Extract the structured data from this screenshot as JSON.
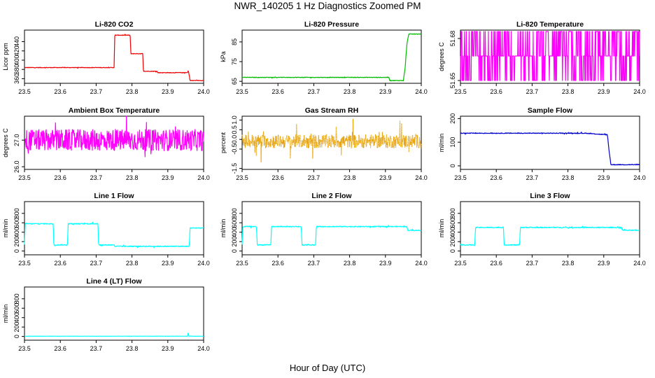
{
  "page": {
    "title": "NWR_140205  1 Hz Diagnostics Zoomed PM",
    "x_axis_title": "Hour of Day (UTC)"
  },
  "chart_data": [
    {
      "type": "line",
      "title": "Li-820 CO2",
      "ylabel": "Licor ppm",
      "xlim": [
        23.5,
        24.0
      ],
      "ylim": [
        350,
        465
      ],
      "yticks": [
        360,
        380,
        400,
        420,
        440
      ],
      "color": "#ee0000",
      "noise": 0.6,
      "series": [
        {
          "x": [
            23.5,
            23.75,
            23.752,
            23.795,
            23.797,
            23.83,
            23.832,
            23.87,
            23.872,
            23.955,
            23.957,
            23.96,
            23.962,
            24.0
          ],
          "y": [
            384,
            384,
            454,
            454,
            414,
            414,
            376,
            376,
            373,
            373,
            378,
            367,
            356,
            356
          ]
        }
      ]
    },
    {
      "type": "line",
      "title": "Li-820 Pressure",
      "ylabel": "kPa",
      "xlim": [
        23.5,
        24.0
      ],
      "ylim": [
        64,
        91
      ],
      "yticks": [
        65,
        75,
        85
      ],
      "color": "#00bb00",
      "noise": 0.15,
      "series": [
        {
          "x": [
            23.5,
            23.91,
            23.912,
            23.95,
            23.955,
            23.96,
            23.965,
            24.0
          ],
          "y": [
            67,
            67,
            65.4,
            65.4,
            72,
            84,
            89,
            89
          ]
        }
      ]
    },
    {
      "type": "line",
      "title": "Li-820 Temperature",
      "ylabel": "degrees C",
      "xlim": [
        23.5,
        24.0
      ],
      "ylim": [
        51.648,
        51.686
      ],
      "yticks": [
        51.65,
        51.68
      ],
      "color": "#ff00ff",
      "style": "toggle",
      "levels": [
        51.65,
        51.6675,
        51.685
      ],
      "series": [
        {
          "x": [
            23.5,
            24.0
          ],
          "y": [
            51.6675,
            51.6675
          ]
        }
      ]
    },
    {
      "type": "line",
      "title": "Ambient Box Temperature",
      "ylabel": "degrees C",
      "xlim": [
        23.5,
        24.0
      ],
      "ylim": [
        25.9,
        27.9
      ],
      "yticks": [
        26.0,
        27.0
      ],
      "ytick_labels": [
        "26.0",
        "27.0"
      ],
      "color": "#ff00ff",
      "noise": 0.4,
      "series": [
        {
          "x": [
            23.5,
            24.0
          ],
          "y": [
            27.0,
            27.0
          ]
        }
      ]
    },
    {
      "type": "line",
      "title": "Gas Stream RH",
      "ylabel": "percent",
      "xlim": [
        23.5,
        24.0
      ],
      "ylim": [
        -1.55,
        1.2
      ],
      "yticks": [
        -1.5,
        -0.5,
        0.0,
        0.5,
        1.0
      ],
      "ytick_labels": [
        "-1.5",
        "-0.5",
        "0.0",
        "0.5",
        "1.0"
      ],
      "color": "#e69f00",
      "noise": 0.35,
      "dotted": true,
      "series": [
        {
          "x": [
            23.5,
            24.0
          ],
          "y": [
            -0.1,
            -0.1
          ]
        }
      ]
    },
    {
      "type": "line",
      "title": "Sample Flow",
      "ylabel": "ml/min",
      "xlim": [
        23.5,
        24.0
      ],
      "ylim": [
        -15,
        210
      ],
      "yticks": [
        0,
        100,
        200
      ],
      "color": "#0000cc",
      "noise": 1.5,
      "series": [
        {
          "x": [
            23.5,
            23.85,
            23.905,
            23.91,
            23.915,
            23.92,
            24.0
          ],
          "y": [
            138,
            138,
            132,
            132,
            60,
            5,
            5
          ]
        }
      ]
    },
    {
      "type": "line",
      "title": "Line 1 Flow",
      "ylabel": "ml/min",
      "xlim": [
        23.5,
        24.0
      ],
      "ylim": [
        -80,
        1050
      ],
      "yticks": [
        0,
        200,
        400,
        600,
        800
      ],
      "color": "#00ffff",
      "noise": 10,
      "series": [
        {
          "x": [
            23.5,
            23.502,
            23.58,
            23.582,
            23.62,
            23.622,
            23.705,
            23.707,
            23.75,
            23.752,
            23.96,
            23.962,
            24.0
          ],
          "y": [
            130,
            580,
            580,
            130,
            130,
            580,
            580,
            130,
            130,
            100,
            100,
            490,
            490
          ]
        }
      ]
    },
    {
      "type": "line",
      "title": "Line 2 Flow",
      "ylabel": "ml/min",
      "xlim": [
        23.5,
        24.0
      ],
      "ylim": [
        -80,
        1050
      ],
      "yticks": [
        0,
        200,
        400,
        600,
        800
      ],
      "color": "#00ffff",
      "noise": 10,
      "series": [
        {
          "x": [
            23.5,
            23.502,
            23.54,
            23.542,
            23.58,
            23.582,
            23.665,
            23.667,
            23.705,
            23.707,
            23.96,
            23.962,
            24.0
          ],
          "y": [
            130,
            520,
            520,
            130,
            130,
            520,
            520,
            130,
            130,
            520,
            520,
            440,
            440
          ]
        }
      ]
    },
    {
      "type": "line",
      "title": "Line 3 Flow",
      "ylabel": "ml/min",
      "xlim": [
        23.5,
        24.0
      ],
      "ylim": [
        -80,
        1050
      ],
      "yticks": [
        0,
        200,
        400,
        600,
        800
      ],
      "color": "#00ffff",
      "noise": 10,
      "series": [
        {
          "x": [
            23.5,
            23.502,
            23.54,
            23.542,
            23.62,
            23.622,
            23.665,
            23.667,
            23.95,
            23.952,
            24.0
          ],
          "y": [
            130,
            130,
            130,
            500,
            500,
            130,
            130,
            500,
            500,
            440,
            440
          ]
        }
      ]
    },
    {
      "type": "line",
      "title": "Line 4 (LT) Flow",
      "ylabel": "ml/min",
      "xlim": [
        23.5,
        24.0
      ],
      "ylim": [
        -80,
        1050
      ],
      "yticks": [
        0,
        200,
        400,
        600,
        800
      ],
      "color": "#00ffff",
      "noise": 2,
      "series": [
        {
          "x": [
            23.5,
            23.955,
            23.957,
            23.959,
            23.961,
            24.0
          ],
          "y": [
            5,
            5,
            80,
            5,
            5,
            5
          ]
        }
      ]
    }
  ],
  "x_ticks": [
    23.5,
    23.6,
    23.7,
    23.8,
    23.9,
    24.0
  ],
  "x_tick_labels": [
    "23.5",
    "23.6",
    "23.7",
    "23.8",
    "23.9",
    "24.0"
  ]
}
